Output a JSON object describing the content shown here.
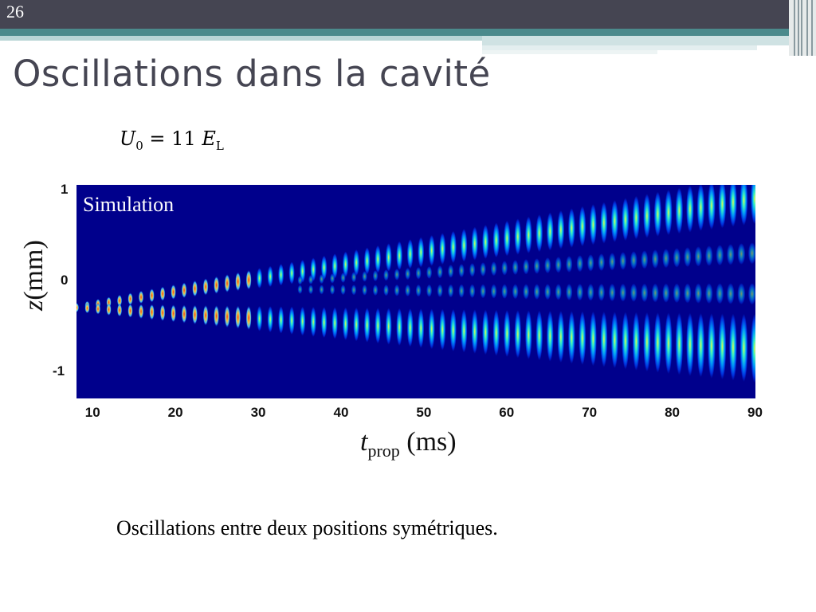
{
  "slide": {
    "number": "26",
    "title": "Oscillations dans la cavité",
    "equation": {
      "lhs_symbol": "U",
      "lhs_sub": "0",
      "operator": "=",
      "value": "11",
      "rhs_symbol": "E",
      "rhs_sub": "L"
    },
    "caption": "Oscillations entre deux positions symétriques."
  },
  "colors": {
    "topbar": "#454552",
    "teal": "#4b8a8c",
    "heatmap_bg": "#00008c"
  },
  "chart_data": {
    "type": "heatmap",
    "title": "",
    "annotation": "Simulation",
    "xlabel": {
      "symbol": "t",
      "sub": "prop",
      "unit": "(ms)"
    },
    "ylabel": {
      "symbol": "z",
      "unit": "(mm)"
    },
    "xlim": [
      8,
      90
    ],
    "ylim": [
      -1.3,
      1.05
    ],
    "x_ticks": [
      10,
      20,
      30,
      40,
      50,
      60,
      70,
      80,
      90
    ],
    "y_ticks": [
      1,
      0,
      -1
    ],
    "branches": [
      {
        "t_start": 8,
        "z_start": -0.3,
        "t_end": 90,
        "z_end": 0.9,
        "spread_end": 0.28
      },
      {
        "t_start": 8,
        "z_start": -0.3,
        "t_end": 90,
        "z_end": -0.75,
        "spread_end": 0.38
      },
      {
        "t_start": 35,
        "z_start": 0.0,
        "t_end": 90,
        "z_end": 0.3,
        "spread_end": 0.12
      },
      {
        "t_start": 35,
        "z_start": -0.1,
        "t_end": 90,
        "z_end": -0.15,
        "spread_end": 0.12
      }
    ],
    "grid": false,
    "colormap": "jet"
  }
}
